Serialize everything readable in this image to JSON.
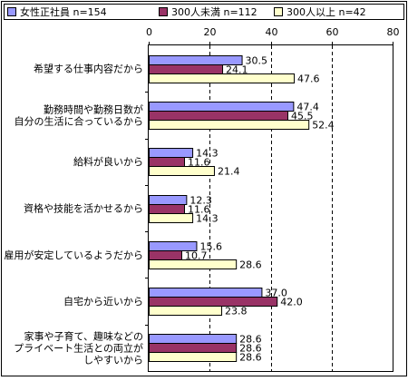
{
  "chart_data": {
    "type": "bar",
    "orientation": "horizontal",
    "categories": [
      [
        "希望する仕事内容だから"
      ],
      [
        "勤務時間や勤務日数が",
        "自分の生活に合っているから"
      ],
      [
        "給料が良いから"
      ],
      [
        "資格や技能を活かせるから"
      ],
      [
        "雇用が安定しているようだから"
      ],
      [
        "自宅から近いから"
      ],
      [
        "家事や子育て、趣味などの",
        "プライベート生活との両立が",
        "しやすいから"
      ]
    ],
    "series": [
      {
        "name": "女性正社員",
        "n": "n=154",
        "color": "#9999ff",
        "values": [
          30.5,
          47.4,
          14.3,
          12.3,
          15.6,
          37.0,
          28.6
        ],
        "labels": [
          "30.5",
          "47.4",
          "14.3",
          "12.3",
          "15.6",
          "37.0",
          "28.6"
        ]
      },
      {
        "name": "300人未満",
        "n": "n=112",
        "color": "#993366",
        "values": [
          24.1,
          45.5,
          11.6,
          11.6,
          10.7,
          42.0,
          28.6
        ],
        "labels": [
          "24.1",
          "45.5",
          "11.6",
          "11.6",
          "10.7",
          "42.0",
          "28.6"
        ]
      },
      {
        "name": "300人以上",
        "n": "n=42",
        "color": "#ffffcc",
        "values": [
          47.6,
          52.4,
          21.4,
          14.3,
          28.6,
          23.8,
          28.6
        ],
        "labels": [
          "47.6",
          "52.4",
          "21.4",
          "14.3",
          "28.6",
          "23.8",
          "28.6"
        ]
      }
    ],
    "xlim": [
      0,
      80
    ],
    "xticks": [
      0,
      20,
      40,
      60,
      80
    ],
    "grid": "vertical dashed",
    "legend_position": "top"
  }
}
